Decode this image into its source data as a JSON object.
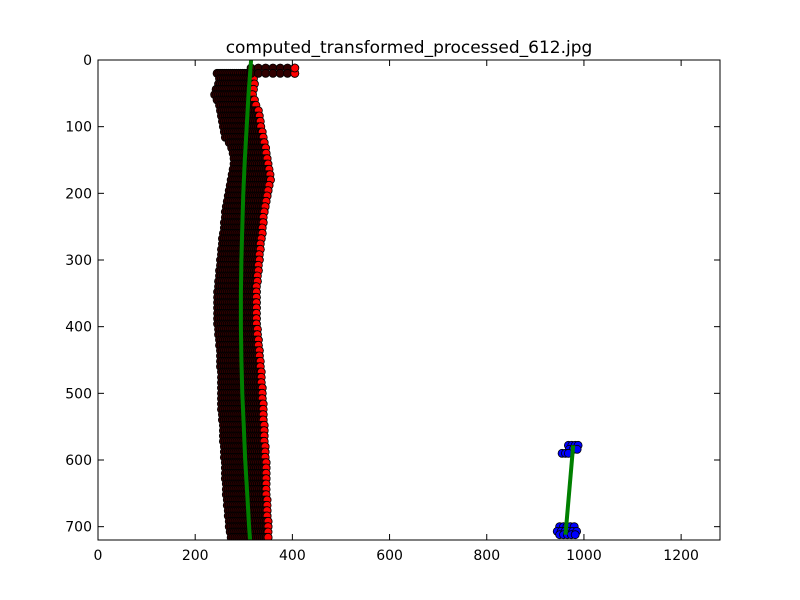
{
  "chart_data": {
    "type": "scatter",
    "title": "computed_transformed_processed_612.jpg",
    "xlabel": "",
    "ylabel": "",
    "xlim": [
      0,
      1280
    ],
    "ylim": [
      720,
      0
    ],
    "y_inverted": true,
    "grid": false,
    "x_ticks": [
      0,
      200,
      400,
      600,
      800,
      1000,
      1200
    ],
    "y_ticks": [
      0,
      100,
      200,
      300,
      400,
      500,
      600,
      700
    ],
    "series": [
      {
        "kind": "points",
        "color": "#ff0000",
        "edge_color": "#000000",
        "ranges": [
          [
            20,
            245,
            318
          ],
          [
            28,
            250,
            320
          ],
          [
            36,
            248,
            322
          ],
          [
            44,
            243,
            320
          ],
          [
            52,
            240,
            318
          ],
          [
            60,
            245,
            322
          ],
          [
            68,
            250,
            325
          ],
          [
            76,
            252,
            330
          ],
          [
            84,
            254,
            332
          ],
          [
            92,
            256,
            334
          ],
          [
            100,
            258,
            335
          ],
          [
            108,
            260,
            338
          ],
          [
            116,
            262,
            340
          ],
          [
            124,
            270,
            342
          ],
          [
            132,
            275,
            345
          ],
          [
            140,
            278,
            346
          ],
          [
            148,
            280,
            348
          ],
          [
            156,
            280,
            350
          ],
          [
            164,
            278,
            352
          ],
          [
            172,
            276,
            354
          ],
          [
            180,
            274,
            355
          ],
          [
            188,
            272,
            352
          ],
          [
            196,
            270,
            350
          ],
          [
            204,
            268,
            348
          ],
          [
            212,
            266,
            346
          ],
          [
            220,
            264,
            344
          ],
          [
            228,
            262,
            342
          ],
          [
            236,
            262,
            340
          ],
          [
            244,
            260,
            340
          ],
          [
            252,
            260,
            338
          ],
          [
            260,
            258,
            338
          ],
          [
            268,
            256,
            336
          ],
          [
            276,
            256,
            334
          ],
          [
            284,
            254,
            334
          ],
          [
            292,
            254,
            332
          ],
          [
            300,
            252,
            332
          ],
          [
            308,
            252,
            330
          ],
          [
            316,
            250,
            330
          ],
          [
            324,
            250,
            328
          ],
          [
            332,
            248,
            328
          ],
          [
            340,
            248,
            326
          ],
          [
            348,
            246,
            326
          ],
          [
            356,
            246,
            326
          ],
          [
            364,
            246,
            326
          ],
          [
            372,
            246,
            326
          ],
          [
            380,
            246,
            326
          ],
          [
            388,
            246,
            326
          ],
          [
            396,
            246,
            326
          ],
          [
            404,
            248,
            328
          ],
          [
            412,
            248,
            328
          ],
          [
            420,
            250,
            330
          ],
          [
            428,
            250,
            330
          ],
          [
            436,
            252,
            332
          ],
          [
            444,
            252,
            332
          ],
          [
            452,
            252,
            334
          ],
          [
            460,
            252,
            334
          ],
          [
            468,
            254,
            336
          ],
          [
            476,
            254,
            336
          ],
          [
            484,
            254,
            336
          ],
          [
            492,
            254,
            338
          ],
          [
            500,
            254,
            338
          ],
          [
            508,
            254,
            338
          ],
          [
            516,
            254,
            340
          ],
          [
            524,
            254,
            340
          ],
          [
            532,
            256,
            340
          ],
          [
            540,
            256,
            340
          ],
          [
            548,
            258,
            342
          ],
          [
            556,
            258,
            342
          ],
          [
            564,
            258,
            342
          ],
          [
            572,
            258,
            342
          ],
          [
            580,
            260,
            344
          ],
          [
            588,
            260,
            344
          ],
          [
            596,
            260,
            344
          ],
          [
            604,
            262,
            346
          ],
          [
            612,
            262,
            346
          ],
          [
            620,
            262,
            346
          ],
          [
            628,
            262,
            346
          ],
          [
            636,
            264,
            346
          ],
          [
            644,
            264,
            346
          ],
          [
            652,
            264,
            346
          ],
          [
            660,
            266,
            348
          ],
          [
            668,
            266,
            348
          ],
          [
            676,
            268,
            348
          ],
          [
            684,
            268,
            348
          ],
          [
            692,
            270,
            350
          ],
          [
            700,
            270,
            350
          ],
          [
            708,
            272,
            350
          ],
          [
            716,
            274,
            350
          ]
        ],
        "extra_points": [
          [
            315,
            12
          ],
          [
            330,
            12
          ],
          [
            345,
            12
          ],
          [
            360,
            12
          ],
          [
            375,
            12
          ],
          [
            390,
            12
          ],
          [
            405,
            12
          ],
          [
            315,
            20
          ],
          [
            330,
            20
          ],
          [
            345,
            20
          ],
          [
            360,
            20
          ],
          [
            375,
            20
          ],
          [
            390,
            20
          ],
          [
            405,
            20
          ]
        ]
      },
      {
        "kind": "points",
        "color": "#0000ff",
        "edge_color": "#000000",
        "points": [
          [
            968,
            578
          ],
          [
            975,
            578
          ],
          [
            982,
            578
          ],
          [
            988,
            578
          ],
          [
            970,
            584
          ],
          [
            978,
            584
          ],
          [
            986,
            584
          ],
          [
            955,
            590
          ],
          [
            962,
            590
          ],
          [
            968,
            590
          ],
          [
            950,
            700
          ],
          [
            958,
            700
          ],
          [
            965,
            700
          ],
          [
            972,
            700
          ],
          [
            980,
            700
          ],
          [
            945,
            707
          ],
          [
            953,
            707
          ],
          [
            961,
            707
          ],
          [
            969,
            707
          ],
          [
            977,
            707
          ],
          [
            985,
            707
          ],
          [
            950,
            712
          ],
          [
            958,
            712
          ],
          [
            966,
            712
          ],
          [
            974,
            712
          ],
          [
            982,
            712
          ]
        ]
      },
      {
        "kind": "fit-line",
        "color": "#008000",
        "points": [
          [
            315,
            0
          ],
          [
            310,
            50
          ],
          [
            306,
            100
          ],
          [
            302,
            150
          ],
          [
            299,
            200
          ],
          [
            297,
            250
          ],
          [
            295,
            300
          ],
          [
            294,
            350
          ],
          [
            294,
            400
          ],
          [
            295,
            450
          ],
          [
            297,
            500
          ],
          [
            300,
            550
          ],
          [
            303,
            600
          ],
          [
            307,
            650
          ],
          [
            311,
            700
          ],
          [
            313,
            720
          ]
        ]
      },
      {
        "kind": "fit-line",
        "color": "#008000",
        "points": [
          [
            978,
            578
          ],
          [
            962,
            712
          ]
        ]
      }
    ]
  }
}
